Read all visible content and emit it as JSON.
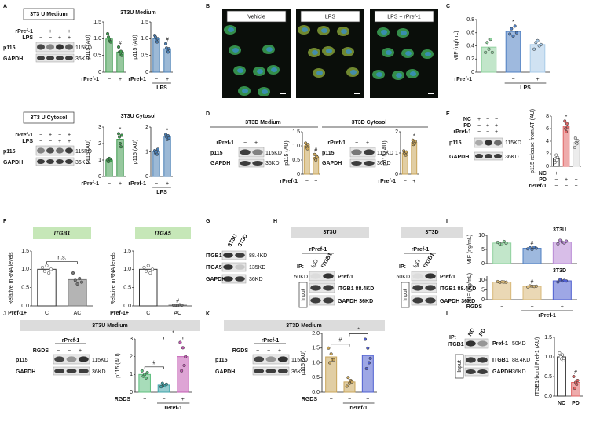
{
  "panel_letters": [
    "A",
    "B",
    "C",
    "D",
    "E",
    "F",
    "G",
    "H",
    "I",
    "J",
    "K",
    "L"
  ],
  "a": {
    "medium_box": "3T3 U Medium",
    "cytosol_box": "3T3 U Cytosol",
    "medium_title": "3T3U Medium",
    "cytosol_title": "3T3U Cytosol",
    "rows": [
      "rPref-1",
      "LPS"
    ],
    "signs_rpref": [
      "−",
      "+",
      "−",
      "+"
    ],
    "signs_lps": [
      "−",
      "−",
      "+",
      "+"
    ],
    "bands": [
      "p115",
      "GAPDH"
    ],
    "sizes": [
      "115KD",
      "36KD"
    ]
  },
  "b": {
    "images": [
      "Vehicle",
      "LPS",
      "LPS + rPref-1"
    ]
  },
  "d": {
    "medium_title": "3T3D Medium",
    "cytosol_title": "3T3D Cytosol",
    "row": "rPref-1",
    "signs": [
      "−",
      "+"
    ],
    "bands": [
      "p115",
      "GAPDH"
    ],
    "sizes": [
      "115KD",
      "36KD"
    ]
  },
  "e": {
    "rows": [
      "NC",
      "PD",
      "rPref-1"
    ],
    "signs": [
      [
        "+",
        "−",
        "−"
      ],
      [
        "−",
        "+",
        "+"
      ],
      [
        "−",
        "−",
        "+"
      ]
    ],
    "bands": [
      "p115",
      "GAPDH"
    ],
    "sizes": [
      "115KD",
      "36KD"
    ]
  },
  "g": {
    "lanes": [
      "3T3U",
      "3T3D"
    ],
    "bands": [
      "ITGB1",
      "ITGA5",
      "GAPDH"
    ],
    "sizes": [
      "88.4KD",
      "135KD",
      "36KD"
    ]
  },
  "h": {
    "headers": [
      "3T3U",
      "3T3D"
    ],
    "treatment": "rPref-1",
    "ip": "IP:",
    "lanes": [
      "IgG",
      "ITGB1"
    ],
    "size": "50KD",
    "band": "Pref-1",
    "input": "Input",
    "input_bands": [
      "ITGB1 88.4KD",
      "GAPDH 36KD"
    ]
  },
  "j": {
    "header": "3T3U Medium",
    "group": "rPref-1",
    "row": "RGDS",
    "signs": [
      "−",
      "−",
      "+"
    ],
    "bands": [
      "p115",
      "GAPDH"
    ],
    "sizes": [
      "115KD",
      "36KD"
    ]
  },
  "k": {
    "header": "3T3D Medium",
    "group": "rPref-1",
    "row": "RGDS",
    "signs": [
      "−",
      "−",
      "+"
    ],
    "bands": [
      "p115",
      "GAPDH"
    ],
    "sizes": [
      "115KD",
      "36KD"
    ]
  },
  "l": {
    "ip": "IP:",
    "ip_target": "ITGB1",
    "lanes": [
      "NC",
      "PD"
    ],
    "band": "Pref-1",
    "size": "50KD",
    "input": "Input",
    "input_bands": [
      "ITGB1",
      "GAPDH"
    ],
    "input_sizes": [
      "88.4KD",
      "36KD"
    ]
  },
  "chart_data": [
    {
      "type": "bar",
      "ylabel": "p115 (AU)",
      "ylim": [
        0,
        1.5
      ],
      "yticks": [
        0,
        0.5,
        {
          "value": 1,
          "label": "1.0"
        },
        1.5
      ],
      "x_rows": [
        {
          "label": "rPref-1",
          "signs": [
            "−",
            "+"
          ]
        }
      ],
      "colors": [
        "#3f9a4f",
        "#3f9a4f"
      ],
      "values": [
        0.99,
        0.6
      ],
      "points": [
        [
          1.15,
          1.05,
          0.98,
          0.92,
          0.9
        ],
        [
          0.75,
          0.6,
          0.55,
          0.62,
          0.5
        ]
      ],
      "bar_marks": [
        null,
        "#"
      ]
    },
    {
      "type": "bar",
      "ylabel": "p115 (AU)",
      "ylim": [
        0,
        1.5
      ],
      "yticks": [
        0,
        0.5,
        {
          "value": 1,
          "label": "1.0"
        },
        1.5
      ],
      "x_rows": [
        {
          "label": "rPref-1",
          "signs": [
            "−",
            "+"
          ]
        }
      ],
      "group": "LPS",
      "colors": [
        "#4a7fb5",
        "#4a7fb5"
      ],
      "values": [
        1.0,
        0.7
      ],
      "points": [
        [
          1.1,
          1.05,
          0.95,
          0.9,
          1.0
        ],
        [
          0.85,
          0.72,
          0.65,
          0.6,
          0.7
        ]
      ],
      "bar_marks": [
        null,
        "#"
      ]
    },
    {
      "type": "bar",
      "ylabel": "p115 (AU)",
      "ylim": [
        0,
        3
      ],
      "yticks": [
        0,
        1,
        2,
        3
      ],
      "x_rows": [
        {
          "label": "rPref-1",
          "signs": [
            "−",
            "+"
          ]
        }
      ],
      "colors": [
        "#3f9a4f",
        "#3f9a4f"
      ],
      "values": [
        1.0,
        2.26
      ],
      "points": [
        [
          1.0,
          0.9,
          1.1,
          1.05,
          0.95
        ],
        [
          2.6,
          2.4,
          2.0,
          1.8,
          2.5
        ]
      ],
      "bar_marks": [
        null,
        "*"
      ]
    },
    {
      "type": "bar",
      "ylabel": "p115 (AU)",
      "ylim": [
        0,
        2
      ],
      "yticks": [
        0,
        1,
        2
      ],
      "x_rows": [
        {
          "label": "rPref-1",
          "signs": [
            "−",
            "+"
          ]
        }
      ],
      "group": "LPS",
      "colors": [
        "#4a7fb5",
        "#4a7fb5"
      ],
      "values": [
        1.0,
        1.6
      ],
      "points": [
        [
          1.05,
          0.95,
          1.0,
          0.9,
          1.1
        ],
        [
          1.7,
          1.6,
          1.5,
          1.65,
          1.55
        ]
      ],
      "bar_marks": [
        null,
        "*"
      ]
    },
    {
      "type": "bar",
      "ylabel": "MIF (ng/mL)",
      "ylim": [
        0,
        0.8
      ],
      "yticks": [
        0,
        0.2,
        0.4,
        0.6,
        0.8
      ],
      "x_rows": [
        {
          "label": "rPref-1",
          "signs": [
            null,
            "−",
            "+"
          ]
        }
      ],
      "group": "LPS",
      "colors": [
        "#8fd19e",
        "#4f7fc2",
        "#a9cbe8"
      ],
      "values": [
        0.38,
        0.62,
        0.42
      ],
      "points": [
        [
          0.3,
          0.45,
          0.35,
          0.5,
          0.3
        ],
        [
          0.58,
          0.66,
          0.55,
          0.7,
          0.6
        ],
        [
          0.35,
          0.45,
          0.48,
          0.4,
          0.42
        ]
      ],
      "bar_marks": [
        null,
        "*",
        null
      ]
    },
    {
      "type": "bar",
      "ylabel": "p115 (AU)",
      "ylim": [
        0,
        1.5
      ],
      "yticks": [
        0,
        0.5,
        {
          "value": 1,
          "label": "1.0"
        },
        1.5
      ],
      "x_rows": [
        {
          "label": "rPref-1",
          "signs": [
            "−",
            "+"
          ]
        }
      ],
      "colors": [
        "#c9a55a",
        "#c9a55a"
      ],
      "values": [
        1.0,
        0.6
      ],
      "points": [
        [
          1.1,
          1.0,
          0.95,
          0.9,
          1.05
        ],
        [
          0.7,
          0.55,
          0.5,
          0.65,
          0.6
        ]
      ],
      "bar_marks": [
        null,
        "#"
      ]
    },
    {
      "type": "bar",
      "ylabel": "p115 (AU)",
      "ylim": [
        0,
        2
      ],
      "yticks": [
        0,
        1,
        2
      ],
      "x_rows": [
        {
          "label": "rPref-1",
          "signs": [
            "−",
            "+"
          ]
        }
      ],
      "colors": [
        "#c9a55a",
        "#c9a55a"
      ],
      "values": [
        1.0,
        1.5
      ],
      "points": [
        [
          1.1,
          1.0,
          0.95,
          0.9,
          1.05
        ],
        [
          1.6,
          1.4,
          1.5,
          1.45,
          1.55
        ]
      ],
      "bar_marks": [
        null,
        "*"
      ]
    },
    {
      "type": "bar",
      "ylabel": "p115 release from AT (AU)",
      "ylim": [
        0,
        8
      ],
      "yticks": [
        0,
        2,
        4,
        6,
        8
      ],
      "x_rows": [
        {
          "label": "NC",
          "signs": [
            "+",
            "−",
            "−"
          ]
        },
        {
          "label": "PD",
          "signs": [
            "−",
            "+",
            "+"
          ]
        },
        {
          "label": "rPref-1",
          "signs": [
            "−",
            "−",
            "+"
          ]
        }
      ],
      "colors": [
        "#ffffff",
        "#e06666",
        "#dddddd"
      ],
      "values": [
        1.2,
        6.36,
        3.8
      ],
      "points": [
        [
          0.6,
          1.2,
          1.8,
          1.0,
          1.4
        ],
        [
          7.2,
          6.0,
          5.5,
          6.8,
          6.3
        ],
        [
          3.0,
          4.5,
          3.8,
          3.6,
          4.1
        ]
      ],
      "bar_marks": [
        null,
        "*",
        null
      ]
    },
    {
      "type": "bar",
      "title": "ITGB1",
      "ylabel": "Relative mRNA levels",
      "ylim": [
        0,
        1.5
      ],
      "yticks": [
        {
          "value": 0,
          "label": "0.0"
        },
        0.5,
        {
          "value": 1,
          "label": "1.0"
        },
        1.5
      ],
      "x_rows": [
        {
          "label": "Pref-1+",
          "signs": [
            "C",
            "AC"
          ]
        }
      ],
      "colors": [
        "#ffffff",
        "#777777"
      ],
      "values": [
        1.0,
        0.72
      ],
      "points": [
        [
          1.05,
          0.95,
          1.1,
          0.9,
          1.0
        ],
        [
          0.9,
          0.7,
          0.6,
          0.75,
          0.65
        ]
      ],
      "bracket_marks": [
        "n.s."
      ]
    },
    {
      "type": "bar",
      "title": "ITGA5",
      "ylabel": "Relative mRNA levels",
      "ylim": [
        0,
        1.5
      ],
      "yticks": [
        {
          "value": 0,
          "label": "0.0"
        },
        0.5,
        {
          "value": 1,
          "label": "1.0"
        },
        1.5
      ],
      "x_rows": [
        {
          "label": "Pref-1+",
          "signs": [
            "C",
            "AC"
          ]
        }
      ],
      "colors": [
        "#ffffff",
        "#777777"
      ],
      "values": [
        1.0,
        0.02
      ],
      "points": [
        [
          1.05,
          0.95,
          1.1,
          0.9,
          1.0
        ],
        [
          0.02,
          0.02,
          0.01,
          0.03,
          0.02
        ]
      ],
      "bar_marks": [
        null,
        "#"
      ]
    },
    {
      "type": "bar",
      "title": "3T3U",
      "ylabel": "MIF (ng/mL)",
      "ylim": [
        0,
        10
      ],
      "yticks": [
        0,
        5,
        10
      ],
      "colors": [
        "#8fd19e",
        "#4f7fc2",
        "#b889d6"
      ],
      "values": [
        7.26,
        5.4,
        7.6
      ],
      "points": [
        [
          7.5,
          7.0,
          6.8,
          7.8,
          7.2
        ],
        [
          5.2,
          5.6,
          5.0,
          5.8,
          5.4
        ],
        [
          7.0,
          8.2,
          7.6,
          7.3,
          7.9
        ]
      ],
      "bar_marks": [
        null,
        "#",
        null
      ]
    },
    {
      "type": "bar",
      "title": "3T3D",
      "ylabel": "MIF (ng/mL)",
      "ylim": [
        0,
        12
      ],
      "yticks": [
        0,
        5,
        10
      ],
      "x_rows": [
        {
          "label": "RGDS",
          "signs": [
            "−",
            "−",
            "+"
          ]
        }
      ],
      "group": "rPref-1",
      "colors": [
        "#d8b878",
        "#d8b878",
        "#4f5fd0"
      ],
      "values": [
        9.0,
        6.8,
        9.6
      ],
      "points": [
        [
          9.2,
          8.8,
          9.1,
          9.0,
          8.9
        ],
        [
          6.5,
          7.0,
          6.9,
          6.7,
          6.9
        ],
        [
          9.0,
          10.2,
          9.5,
          9.8,
          9.5
        ]
      ],
      "bar_marks": [
        null,
        "#",
        null
      ]
    },
    {
      "type": "bar",
      "ylabel": "p115 (AU)",
      "ylim": [
        0,
        3
      ],
      "yticks": [
        0,
        1,
        2,
        3
      ],
      "x_rows": [
        {
          "label": "RGDS",
          "signs": [
            "−",
            "−",
            "+"
          ]
        }
      ],
      "group": "rPref-1",
      "colors": [
        "#5fbf7f",
        "#3fa3a8",
        "#c35ab3"
      ],
      "values": [
        1.0,
        0.4,
        2.0
      ],
      "points": [
        [
          1.2,
          0.9,
          1.0,
          0.8,
          1.1
        ],
        [
          0.3,
          0.5,
          0.4,
          0.35,
          0.45
        ],
        [
          2.8,
          1.2,
          2.5,
          1.5,
          2.0
        ]
      ],
      "bracket_marks": [
        "#",
        "*"
      ]
    },
    {
      "type": "bar",
      "ylabel": "p115 (AU)",
      "ylim": [
        0,
        2
      ],
      "yticks": [
        {
          "value": 0,
          "label": "0.0"
        },
        0.5,
        {
          "value": 1,
          "label": "1.0"
        },
        1.5,
        {
          "value": 2,
          "label": "2.0"
        }
      ],
      "x_rows": [
        {
          "label": "RGDS",
          "signs": [
            "−",
            "−",
            "+"
          ]
        }
      ],
      "group": "rPref-1",
      "colors": [
        "#c9a55a",
        "#c9a55a",
        "#4f5fd0"
      ],
      "values": [
        1.2,
        0.35,
        1.25
      ],
      "points": [
        [
          1.5,
          1.0,
          1.3,
          1.1,
          1.1
        ],
        [
          0.2,
          0.5,
          0.3,
          0.4,
          0.35
        ],
        [
          1.8,
          0.8,
          1.5,
          1.0,
          1.15
        ]
      ],
      "bracket_marks": [
        "#",
        "*"
      ]
    },
    {
      "type": "bar",
      "ylabel": "ITGB1-bond Pref-1 (AU)",
      "ylim": [
        0,
        1.5
      ],
      "yticks": [
        {
          "value": 0,
          "label": "0.0"
        },
        0.5,
        {
          "value": 1,
          "label": "1.0"
        },
        1.5
      ],
      "categories": [
        "NC",
        "PD"
      ],
      "colors": [
        "#ffffff",
        "#e06666"
      ],
      "values": [
        1.0,
        0.35
      ],
      "points": [
        [
          1.1,
          1.0,
          0.95,
          1.05,
          0.9
        ],
        [
          0.5,
          0.2,
          0.35,
          0.3,
          0.4
        ]
      ],
      "bar_marks": [
        null,
        "#"
      ]
    }
  ]
}
